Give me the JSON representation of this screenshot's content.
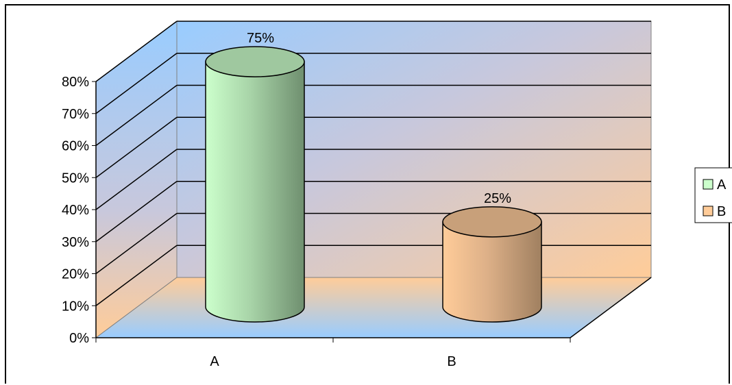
{
  "chart_data": {
    "type": "bar",
    "style": "3d-cylinder",
    "categories": [
      "A",
      "B"
    ],
    "values": [
      75,
      25
    ],
    "data_labels": [
      "75%",
      "25%"
    ],
    "ylim": [
      0,
      80
    ],
    "y_ticks": [
      "0%",
      "10%",
      "20%",
      "30%",
      "40%",
      "50%",
      "60%",
      "70%",
      "80%"
    ],
    "grid": true,
    "legend": {
      "placement": "right",
      "entries": [
        {
          "label": "A",
          "color": "#ccffcc"
        },
        {
          "label": "B",
          "color": "#ffcc99"
        }
      ]
    },
    "colors": {
      "bar_a_light": "#ccffcc",
      "bar_a_dark": "#6f8f6f",
      "bar_b_light": "#ffcc99",
      "bar_b_dark": "#a08060",
      "wall_blue": "#99ccff",
      "wall_orange": "#ffcc99"
    }
  }
}
